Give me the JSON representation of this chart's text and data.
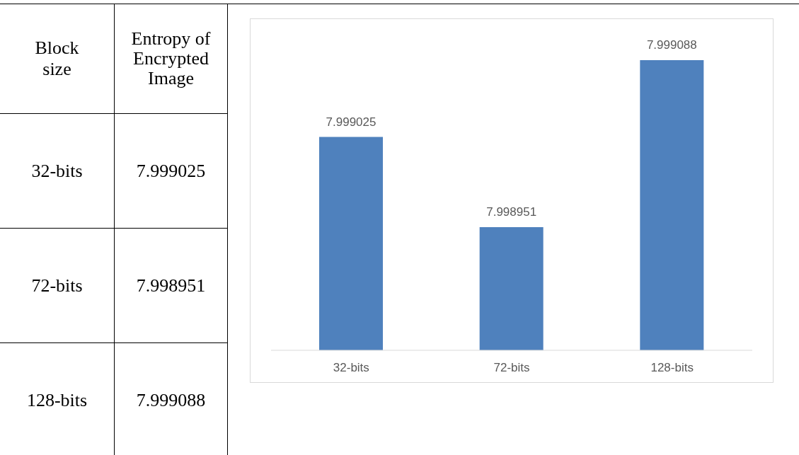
{
  "chart_data": {
    "type": "bar",
    "categories": [
      "32-bits",
      "72-bits",
      "128-bits"
    ],
    "values": [
      7.999025,
      7.998951,
      7.999088
    ],
    "color": "#4f81bd",
    "ylim": [
      7.99885,
      7.999088
    ],
    "value_labels": [
      "7.999025",
      "7.998951",
      "7.999088"
    ],
    "annotations": [
      "Block size",
      "Entropy of Encrypted Image"
    ]
  }
}
